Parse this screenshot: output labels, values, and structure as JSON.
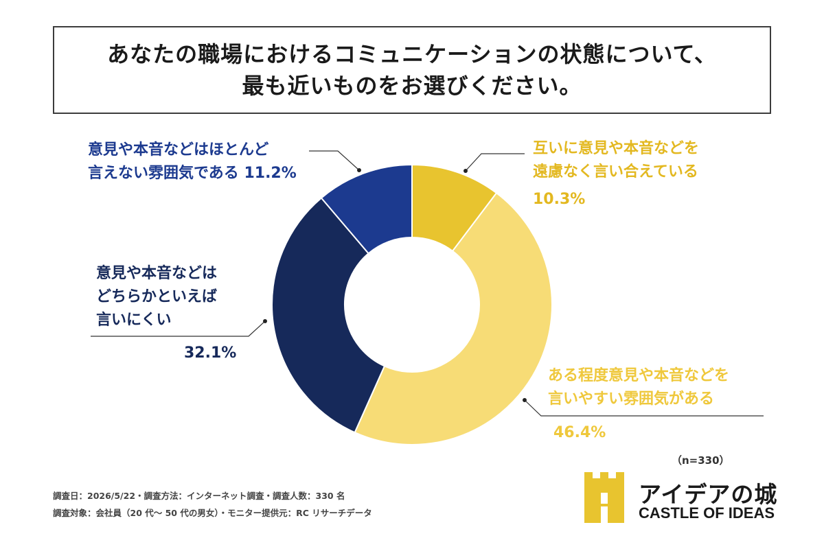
{
  "title": {
    "line1": "あなたの職場におけるコミュニケーションの状態について、",
    "line2": "最も近いものをお選びください。"
  },
  "chart_data": {
    "type": "pie",
    "donut": true,
    "slices": [
      {
        "label_lines": [
          "互いに意見や本音などを",
          "遠慮なく言い合えている"
        ],
        "value": 10.3,
        "value_text": "10.3%",
        "color": "#e8c42f"
      },
      {
        "label_lines": [
          "ある程度意見や本音などを",
          "言いやすい雰囲気がある"
        ],
        "value": 46.4,
        "value_text": "46.4%",
        "color": "#f7dc76"
      },
      {
        "label_lines": [
          "意見や本音などは",
          "どちらかといえば",
          "言いにくい"
        ],
        "value": 32.1,
        "value_text": "32.1%",
        "color": "#16295a"
      },
      {
        "label_lines": [
          "意見や本音などはほとんど",
          "言えない雰囲気である"
        ],
        "value": 11.2,
        "value_text": "11.2%",
        "color": "#1c3a8f"
      }
    ],
    "n_label": "（n=330）"
  },
  "footnotes": {
    "line1": "調査日：2026/5/22・調査方法：インターネット調査・調査人数：330 名",
    "line2": "調査対象：会社員（20 代～ 50 代の男女）・モニター提供元：RC リサーチデータ"
  },
  "logo": {
    "jp": "アイデアの城",
    "en": "CASTLE OF IDEAS"
  }
}
